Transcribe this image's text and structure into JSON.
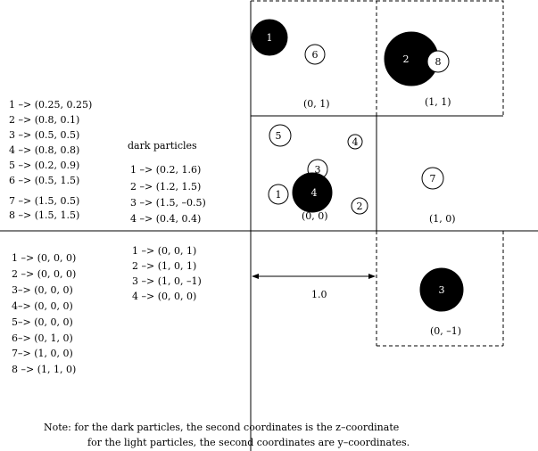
{
  "light_positions": [
    "1 –> (0.25, 0.25)",
    "2 –> (0.8, 0.1)",
    "3 –> (0.5, 0.5)",
    "4 –> (0.8, 0.8)",
    "5 –> (0.2, 0.9)",
    "6 –> (0.5, 1.5)",
    "7 –> (1.5, 0.5)",
    "8 –> (1.5, 1.5)"
  ],
  "dark_title": "dark particles",
  "dark_positions": [
    "1 –> (0.2, 1.6)",
    "2 –> (1.2, 1.5)",
    "3 –> (1.5, –0.5)",
    "4 –> (0.4, 0.4)"
  ],
  "light_cells": [
    "1 –> (0, 0, 0)",
    "2 –> (0, 0, 0)",
    "3–> (0, 0, 0)",
    "4–> (0, 0, 0)",
    "5–> (0, 0, 0)",
    "6–> (0, 1, 0)",
    "7–> (1, 0, 0)",
    "8 –> (1, 1, 0)"
  ],
  "dark_cells": [
    "1 –> (0, 0, 1)",
    "2 –> (1, 0, 1)",
    "3 –> (1, 0, –1)",
    "4 –> (0, 0, 0)"
  ],
  "cell_labels": [
    "(0, 1)",
    "(1, 1)",
    "(0, 0)",
    "(1, 0)",
    "(0, –1)"
  ],
  "scale_label": "1.0",
  "light_particles": [
    "1",
    "3",
    "5",
    "4",
    "6",
    "8",
    "7",
    "2"
  ],
  "dark_particles": [
    "1",
    "2",
    "4",
    "3"
  ],
  "note_line1": "Note: for the dark particles, the second coordinates is the z–coordinate",
  "note_line2": "for the light particles, the second coordinates are y–coordinates."
}
